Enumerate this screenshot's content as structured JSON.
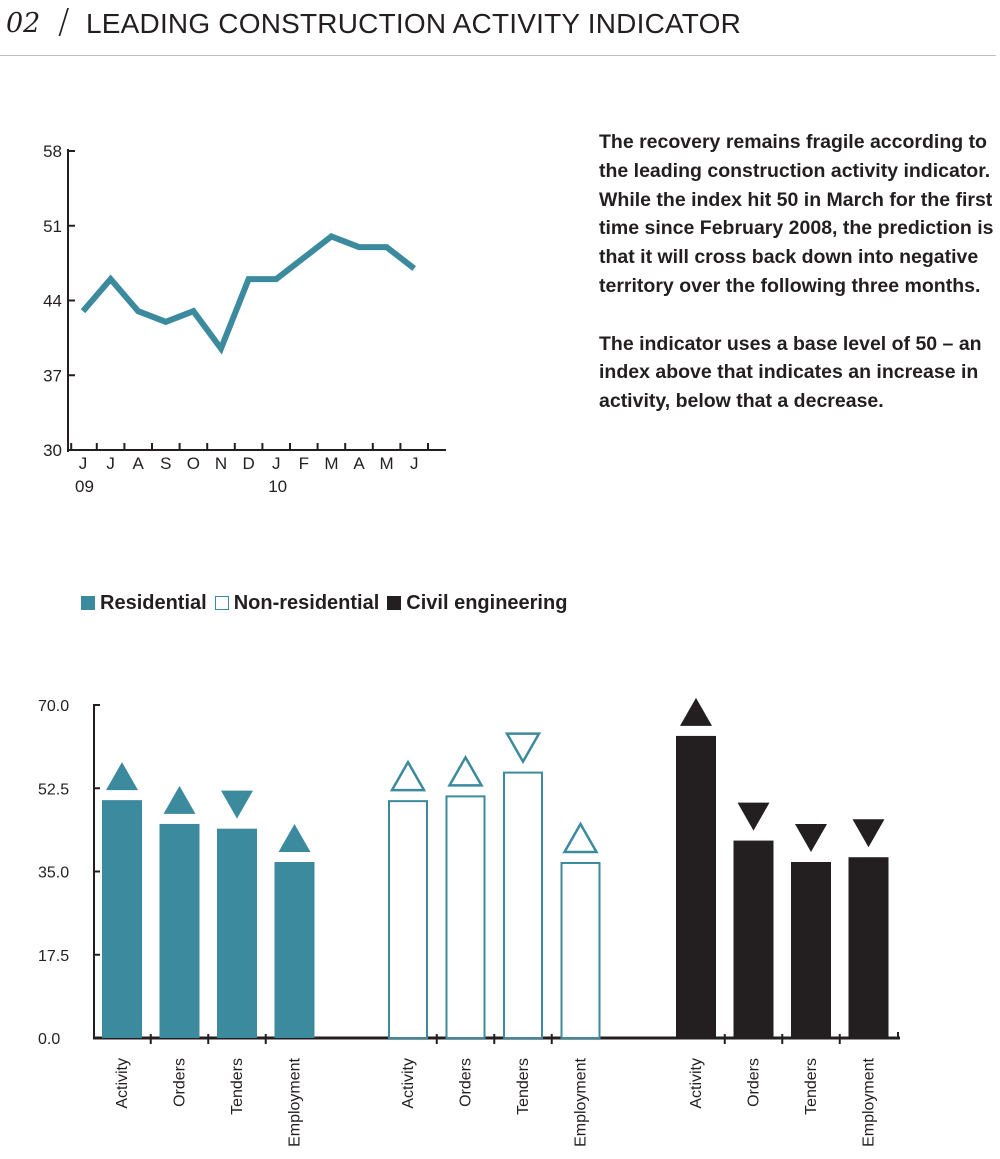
{
  "header": {
    "section_number": "02",
    "title": "LEADING CONSTRUCTION ACTIVITY INDICATOR"
  },
  "commentary": {
    "paragraph_1": "The recovery remains fragile according to the leading construction activity indicator. While the index hit 50 in March for the first time since February 2008, the prediction is that it will cross back down into negative territory over the following three months.",
    "paragraph_2": "The indicator uses a base level of 50 – an index above that indicates an increase in activity, below that a decrease."
  },
  "legend": [
    {
      "label": "Residential",
      "color": "#3c8a9e",
      "filled": true
    },
    {
      "label": "Non-residential",
      "color": "#3c8a9e",
      "filled": false
    },
    {
      "label": "Civil engineering",
      "color": "#231f20",
      "filled": true
    }
  ],
  "colors": {
    "teal": "#3c8a9e",
    "black": "#231f20",
    "line": "#3c8a9e"
  },
  "chart_data": [
    {
      "type": "line",
      "x": [
        "J",
        "J",
        "A",
        "S",
        "O",
        "N",
        "D",
        "J",
        "F",
        "M",
        "A",
        "M",
        "J"
      ],
      "year_labels": [
        {
          "index": 0,
          "label": "09"
        },
        {
          "index": 7,
          "label": "10"
        }
      ],
      "series": [
        {
          "values": [
            43.0,
            46.0,
            43.0,
            42.0,
            43.0,
            39.5,
            46.0,
            46.0,
            48.0,
            50.0,
            49.0,
            49.0,
            47.0
          ]
        }
      ],
      "yticks": [
        "30",
        "37",
        "44",
        "51",
        "58"
      ],
      "ylim": [
        30,
        58
      ]
    },
    {
      "type": "bar",
      "categories": [
        "Activity",
        "Orders",
        "Tenders",
        "Employment"
      ],
      "groups": [
        {
          "name": "Residential",
          "style": "filled-teal",
          "values": [
            50.0,
            45.0,
            44.0,
            37.0
          ],
          "trend": [
            "up",
            "up",
            "down",
            "up"
          ]
        },
        {
          "name": "Non-residential",
          "style": "outline-teal",
          "values": [
            50.0,
            51.0,
            56.0,
            37.0
          ],
          "trend": [
            "up",
            "up",
            "down",
            "up"
          ]
        },
        {
          "name": "Civil engineering",
          "style": "filled-black",
          "values": [
            63.5,
            41.5,
            37.0,
            38.0
          ],
          "trend": [
            "up",
            "down",
            "down",
            "down"
          ]
        }
      ],
      "yticks": [
        "0.0",
        "17.5",
        "35.0",
        "52.5",
        "70.0"
      ],
      "ylim": [
        0,
        70
      ]
    }
  ]
}
